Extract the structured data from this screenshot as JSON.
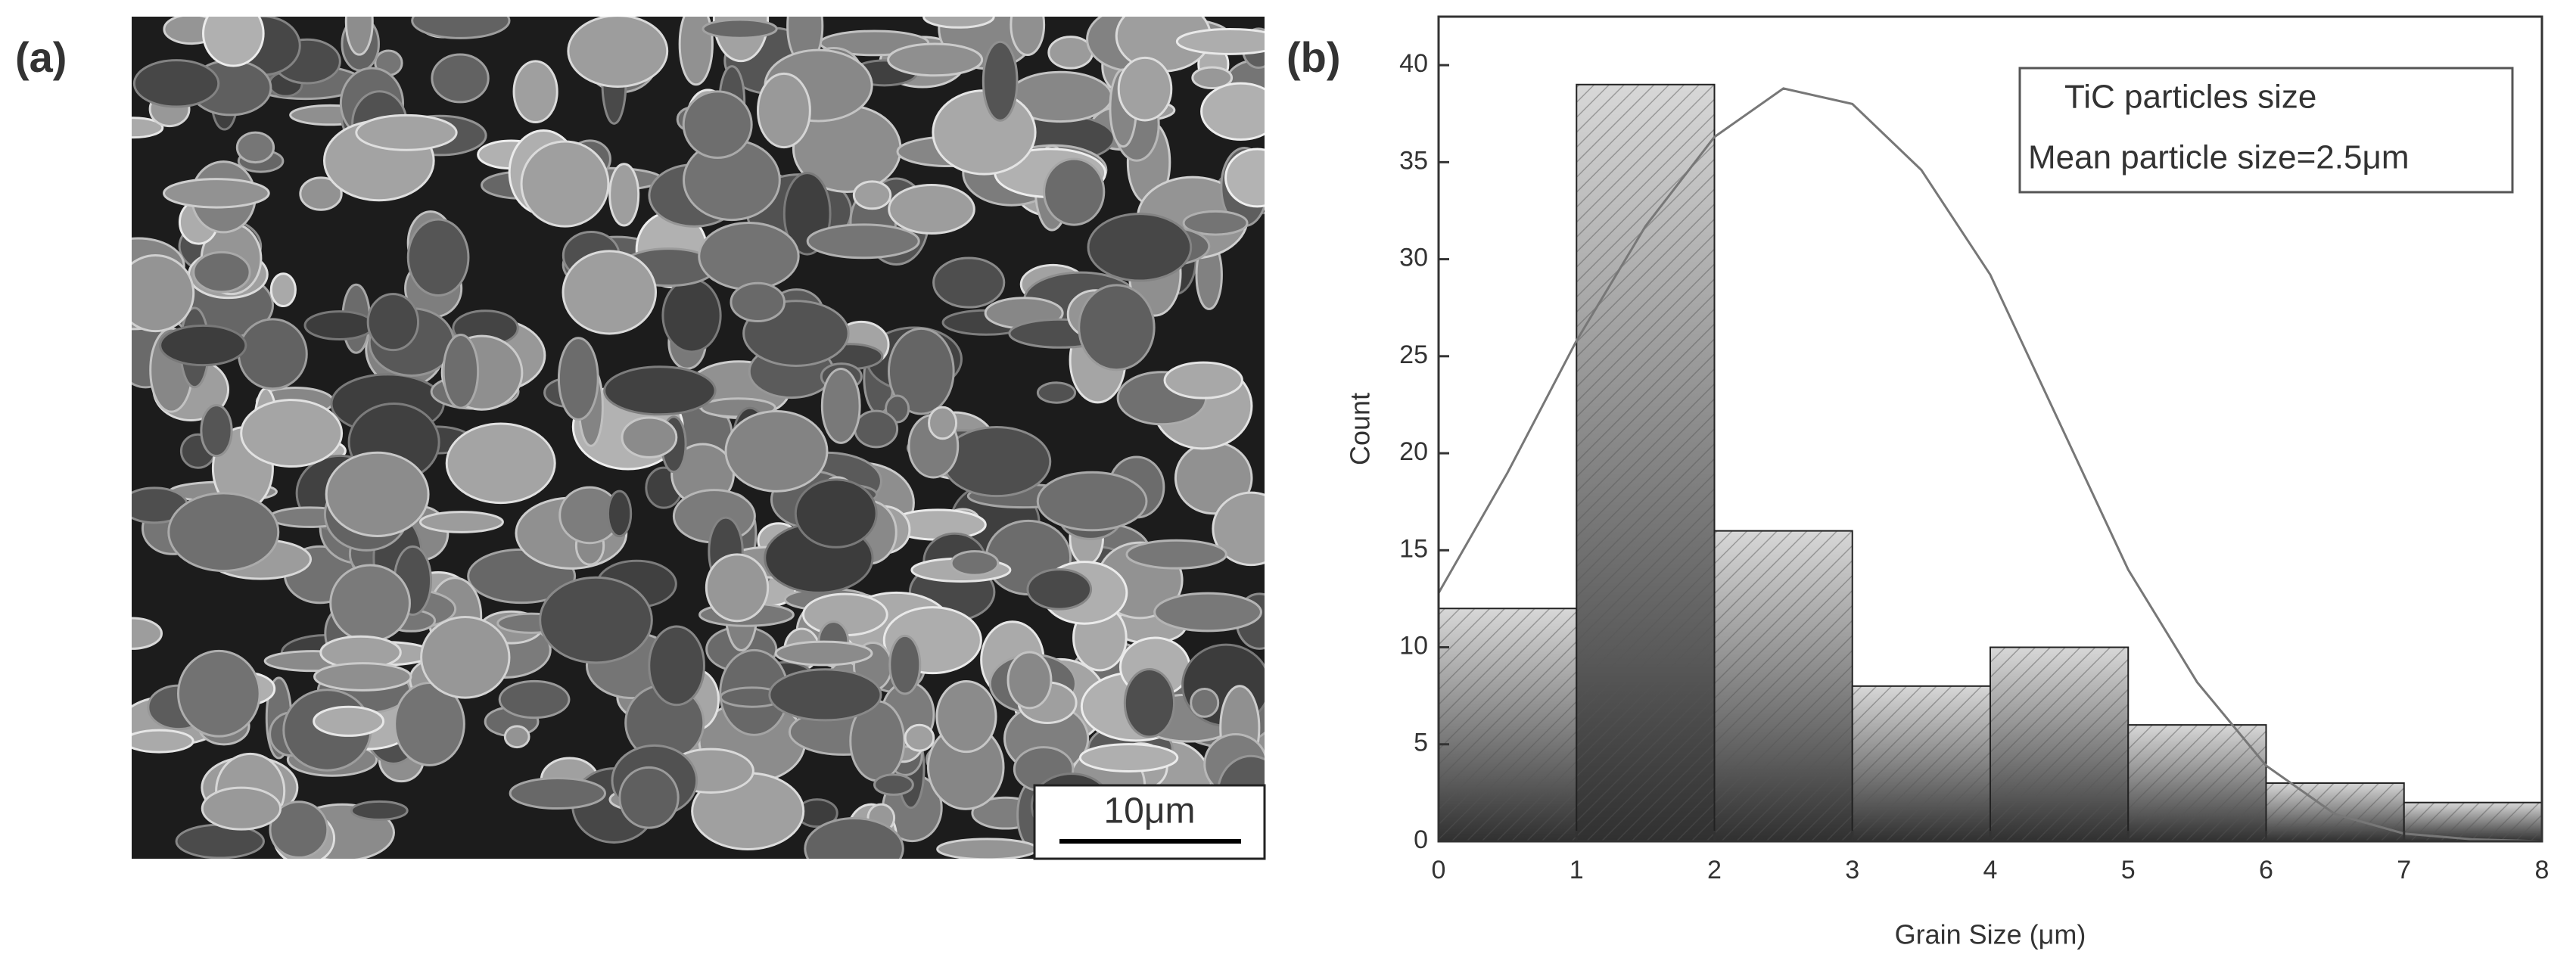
{
  "panel_labels": [
    "(a)",
    "(b)"
  ],
  "scale_bar": "10μm",
  "chart_data": {
    "type": "histogram",
    "xlabel": "Grain Size (μm)",
    "ylabel": "Count",
    "bins": [
      0,
      1,
      2,
      3,
      4,
      5,
      6,
      7,
      8
    ],
    "values": [
      12,
      39,
      16,
      8,
      10,
      6,
      3,
      2
    ],
    "xlim": [
      0,
      8
    ],
    "ylim": [
      0,
      42.5
    ],
    "xticks": [
      0,
      1,
      2,
      3,
      4,
      5,
      6,
      7,
      8
    ],
    "yticks": [
      0,
      5,
      10,
      15,
      20,
      25,
      30,
      35,
      40
    ],
    "legend": [
      "TiC particles size",
      "Mean particle size=2.5μm"
    ],
    "legend_position": "upper right",
    "fit_curve": {
      "x": [
        0,
        0.5,
        1,
        1.5,
        2,
        2.5,
        3,
        3.5,
        4,
        4.5,
        5,
        5.5,
        6,
        6.5,
        7,
        7.5,
        8
      ],
      "values": [
        12.8,
        19,
        25.8,
        31.7,
        36.3,
        38.8,
        38,
        34.6,
        29.2,
        21.6,
        14,
        8.2,
        3.9,
        1.4,
        0.4,
        0.1,
        0
      ],
      "color": "#777777"
    }
  }
}
